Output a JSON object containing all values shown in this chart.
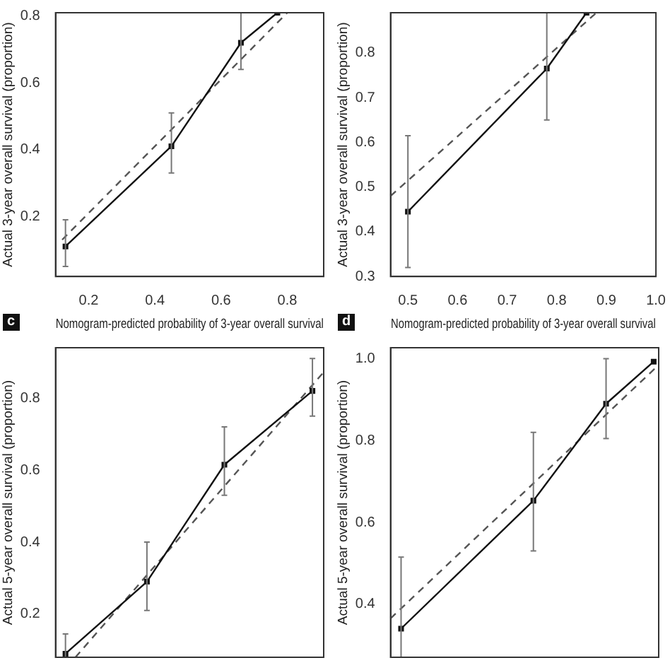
{
  "chart_data": [
    {
      "type": "line",
      "xlabel": "Nomogram-predicted probability of 3-year overall survival",
      "ylabel": "Actual 3-year overall survival (proportion)",
      "xlim": [
        0.1,
        0.91
      ],
      "xticks": [
        0.2,
        0.4,
        0.6,
        0.8
      ],
      "ylim": [
        0.02,
        0.81
      ],
      "yticks": [
        0.2,
        0.4,
        0.6,
        0.8
      ],
      "grid": false,
      "legend": false,
      "series": [
        {
          "color": "#111111",
          "line_style": "solid",
          "marker": "square",
          "x": [
            0.13,
            0.45,
            0.66,
            0.77
          ],
          "values": [
            0.11,
            0.41,
            0.72,
            0.81
          ],
          "errors": [
            [
              0.05,
              0.19
            ],
            [
              0.33,
              0.51
            ],
            [
              0.64,
              0.81
            ],
            null
          ]
        },
        {
          "color": "#555555",
          "line_style": "dashed",
          "marker": "none",
          "x": [
            0.12,
            0.8
          ],
          "values": [
            0.13,
            0.81
          ]
        }
      ]
    },
    {
      "type": "line",
      "xlabel": "Nomogram-predicted probability of 3-year overall survival",
      "ylabel": "Actual 3-year overall survival (proportion)",
      "xlim": [
        0.465,
        1.0
      ],
      "xticks": [
        0.5,
        0.6,
        0.7,
        0.8,
        0.9,
        {
          "value": 1,
          "label": "1.0"
        }
      ],
      "ylim": [
        0.3,
        0.89
      ],
      "yticks": [
        0.3,
        0.4,
        0.5,
        0.6,
        0.7,
        0.8
      ],
      "grid": false,
      "legend": false,
      "series": [
        {
          "color": "#111111",
          "line_style": "solid",
          "marker": "square",
          "x": [
            0.5,
            0.78,
            0.86
          ],
          "values": [
            0.445,
            0.765,
            0.89
          ],
          "errors": [
            [
              0.32,
              0.615
            ],
            [
              0.65,
              0.89
            ],
            null
          ]
        },
        {
          "color": "#555555",
          "line_style": "dashed",
          "marker": "none",
          "x": [
            0.465,
            0.88
          ],
          "values": [
            0.48,
            0.89
          ]
        }
      ]
    },
    {
      "type": "line",
      "title": "c",
      "ylabel": "Actual 5-year overall survival (proportion)",
      "xlim": [
        0.1,
        0.91
      ],
      "ylim": [
        0.08,
        0.94
      ],
      "yticks": [
        0.2,
        0.4,
        0.6,
        0.8
      ],
      "tick_labels": "y",
      "grid": false,
      "legend": false,
      "series": [
        {
          "color": "#111111",
          "line_style": "solid",
          "marker": "square",
          "x": [
            0.13,
            0.376,
            0.61,
            0.876
          ],
          "values": [
            0.09,
            0.29,
            0.615,
            0.82
          ],
          "errors": [
            [
              0.08,
              0.145
            ],
            [
              0.21,
              0.4
            ],
            [
              0.53,
              0.72
            ],
            [
              0.75,
              0.91
            ]
          ]
        },
        {
          "color": "#555555",
          "line_style": "dashed",
          "marker": "none",
          "x": [
            0.16,
            0.908
          ],
          "values": [
            0.08,
            0.87
          ]
        }
      ]
    },
    {
      "type": "line",
      "title": "d",
      "ylabel": "Actual 5-year overall survival (proportion)",
      "xlim": [
        0.465,
        1.0
      ],
      "ylim": [
        0.27,
        1.027
      ],
      "yticks": [
        0.4,
        0.6,
        0.8,
        {
          "value": 1,
          "label": "1.0"
        }
      ],
      "tick_labels": "y",
      "grid": false,
      "legend": false,
      "series": [
        {
          "color": "#111111",
          "line_style": "solid",
          "marker": "square",
          "x": [
            0.486,
            0.75,
            0.895,
            0.99
          ],
          "values": [
            0.34,
            0.653,
            0.89,
            0.993
          ],
          "errors": [
            [
              0.27,
              0.515
            ],
            [
              0.53,
              0.82
            ],
            [
              0.805,
              1.0
            ],
            null
          ]
        },
        {
          "color": "#555555",
          "line_style": "dashed",
          "marker": "none",
          "x": [
            0.465,
            1.0
          ],
          "values": [
            0.365,
            0.985
          ]
        }
      ]
    }
  ]
}
